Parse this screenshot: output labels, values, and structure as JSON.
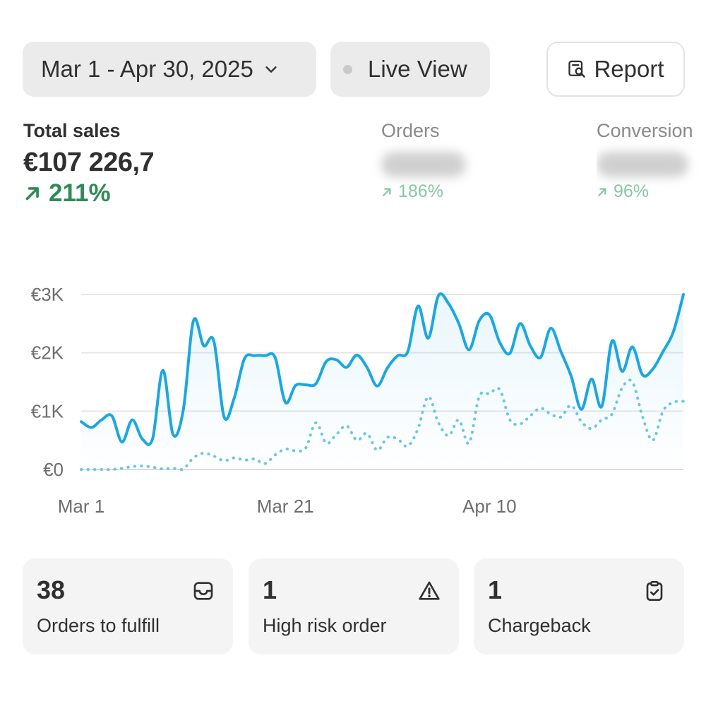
{
  "header": {
    "date_range": "Mar 1 - Apr 30, 2025",
    "live_view": "Live View",
    "report": "Report"
  },
  "metrics": {
    "total_sales": {
      "label": "Total sales",
      "value": "€107 226,7",
      "change": "211%"
    },
    "orders": {
      "label": "Orders",
      "change": "186%"
    },
    "conversion": {
      "label": "Conversion",
      "change": "96%"
    }
  },
  "colors": {
    "accent_line": "#1ba7e0",
    "positive": "#2e8b57",
    "positive_faded": "#86c8a3"
  },
  "chart_data": {
    "type": "line",
    "y_ticks": [
      "€3K",
      "€2K",
      "€1K",
      "€0"
    ],
    "x_ticks": [
      "Mar 1",
      "Mar 21",
      "Apr 10"
    ],
    "ylim": [
      0,
      3000
    ],
    "grid": true,
    "series": [
      {
        "style": "solid",
        "values": [
          820,
          720,
          850,
          920,
          470,
          850,
          520,
          530,
          1700,
          600,
          1020,
          2550,
          2120,
          2200,
          900,
          1230,
          1900,
          1950,
          1950,
          1920,
          1150,
          1440,
          1450,
          1470,
          1850,
          1880,
          1750,
          1960,
          1750,
          1430,
          1740,
          1950,
          2020,
          2800,
          2250,
          2980,
          2840,
          2500,
          2050,
          2550,
          2650,
          2180,
          1990,
          2500,
          2120,
          1920,
          2420,
          2020,
          1600,
          1030,
          1550,
          1080,
          2200,
          1680,
          2100,
          1620,
          1720,
          2020,
          2350,
          3000
        ]
      },
      {
        "style": "dotted",
        "values": [
          0,
          0,
          0,
          0,
          20,
          50,
          60,
          40,
          10,
          20,
          10,
          200,
          280,
          230,
          150,
          200,
          160,
          180,
          100,
          250,
          350,
          320,
          370,
          800,
          450,
          600,
          750,
          500,
          620,
          330,
          550,
          520,
          400,
          700,
          1250,
          800,
          580,
          850,
          450,
          1250,
          1300,
          1370,
          850,
          780,
          920,
          1050,
          950,
          900,
          1100,
          820,
          700,
          850,
          950,
          1400,
          1500,
          900,
          500,
          1000,
          1150,
          1170
        ]
      }
    ]
  },
  "cards": [
    {
      "count": "38",
      "label": "Orders to fulfill",
      "icon": "inbox-icon"
    },
    {
      "count": "1",
      "label": "High risk order",
      "icon": "alert-triangle-icon"
    },
    {
      "count": "1",
      "label": "Chargeback",
      "icon": "clipboard-check-icon"
    }
  ]
}
